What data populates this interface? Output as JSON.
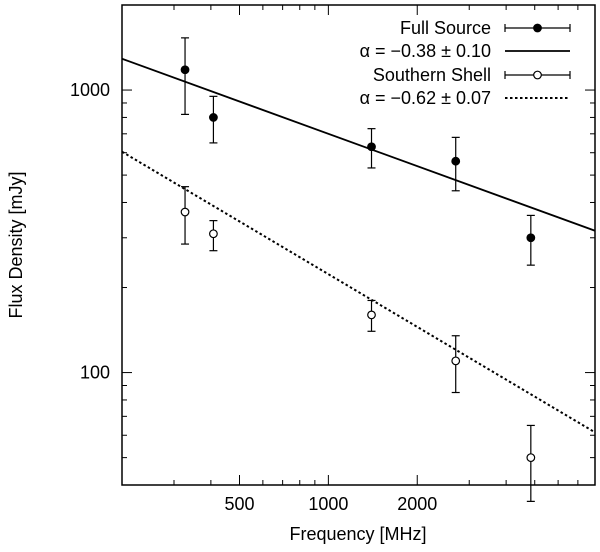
{
  "chart_data": {
    "type": "scatter",
    "xlabel": "Frequency [MHz]",
    "ylabel": "Flux Density [mJy]",
    "x_scale": "log",
    "y_scale": "log",
    "xlim": [
      200,
      8000
    ],
    "ylim": [
      40,
      2000
    ],
    "x_ticks": [
      {
        "value": 500,
        "label": "500"
      },
      {
        "value": 1000,
        "label": "1000"
      },
      {
        "value": 2000,
        "label": "2000"
      }
    ],
    "y_ticks": [
      {
        "value": 100,
        "label": "100"
      },
      {
        "value": 1000,
        "label": "1000"
      }
    ],
    "grid": false,
    "legend_position": "top-right",
    "series": [
      {
        "name": "Full Source",
        "kind": "points",
        "marker": "filled-circle",
        "points": [
          {
            "x": 327,
            "y": 1180,
            "err_low": 820,
            "err_high": 1530
          },
          {
            "x": 408,
            "y": 800,
            "err_low": 650,
            "err_high": 950
          },
          {
            "x": 1400,
            "y": 630,
            "err_low": 530,
            "err_high": 730
          },
          {
            "x": 2700,
            "y": 560,
            "err_low": 440,
            "err_high": 680
          },
          {
            "x": 4850,
            "y": 300,
            "err_low": 240,
            "err_high": 360
          }
        ]
      },
      {
        "name": "α = −0.38 ± 0.10",
        "kind": "fit",
        "line_style": "solid",
        "alpha": -0.38,
        "ref_x": 1000,
        "ref_y": 700
      },
      {
        "name": "Southern Shell",
        "kind": "points",
        "marker": "open-circle",
        "points": [
          {
            "x": 327,
            "y": 370,
            "err_low": 285,
            "err_high": 455
          },
          {
            "x": 408,
            "y": 310,
            "err_low": 270,
            "err_high": 345
          },
          {
            "x": 1400,
            "y": 160,
            "err_low": 140,
            "err_high": 180
          },
          {
            "x": 2700,
            "y": 110,
            "err_low": 85,
            "err_high": 135
          },
          {
            "x": 4850,
            "y": 50,
            "err_low": 35,
            "err_high": 65
          }
        ]
      },
      {
        "name": "α = −0.62 ± 0.07",
        "kind": "fit",
        "line_style": "dotted",
        "alpha": -0.62,
        "ref_x": 1000,
        "ref_y": 223
      }
    ]
  }
}
